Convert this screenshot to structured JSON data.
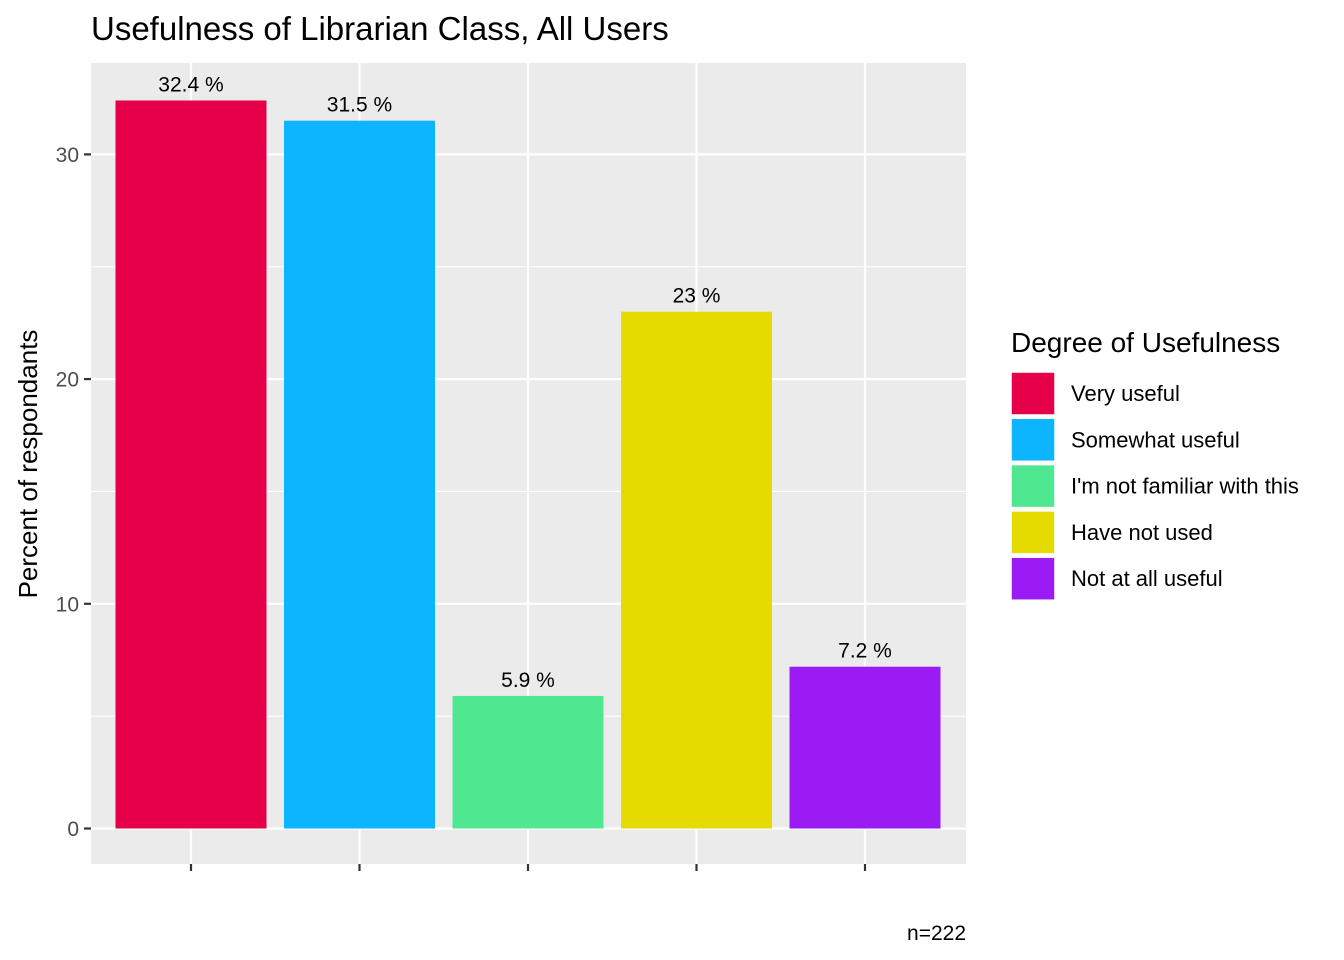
{
  "chart_data": {
    "type": "bar",
    "title": "Usefulness of Librarian Class, All Users",
    "xlabel": "",
    "ylabel": "Percent of respondants",
    "caption": "n=222",
    "categories": [
      "Very useful",
      "Somewhat useful",
      "I'm not familiar with this",
      "Have not used",
      "Not at all useful"
    ],
    "values": [
      32.4,
      31.5,
      5.9,
      23.0,
      7.2
    ],
    "data_labels": [
      "32.4 %",
      "31.5 %",
      "5.9 %",
      "23 %",
      "7.2 %"
    ],
    "colors": [
      "#E6004A",
      "#0DB4FF",
      "#4FE890",
      "#E6DB00",
      "#9B1BF5"
    ],
    "ylim": [
      0,
      33.5
    ],
    "yticks": [
      0,
      10,
      20,
      30
    ],
    "ytick_labels": [
      "0",
      "10",
      "20",
      "30"
    ],
    "grid": true,
    "legend": {
      "title": "Degree of Usefulness",
      "position": "right",
      "items": [
        "Very useful",
        "Somewhat useful",
        "I'm not familiar with this",
        "Have not used",
        "Not at all useful"
      ]
    }
  }
}
